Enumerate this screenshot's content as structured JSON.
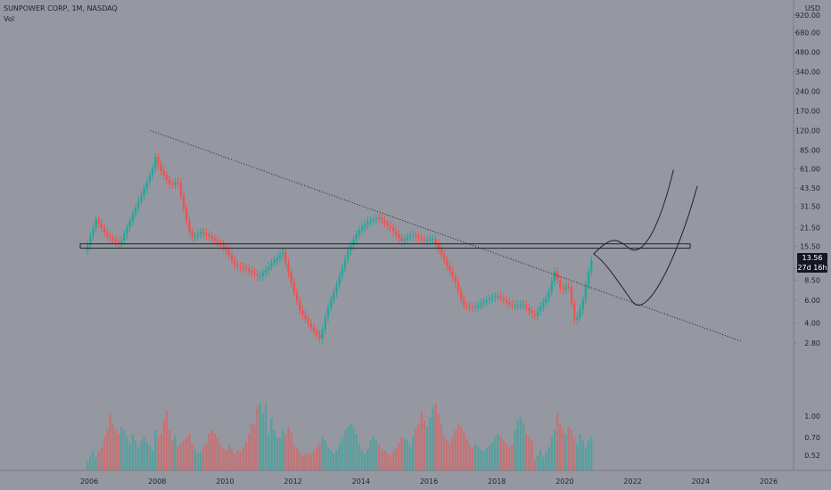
{
  "header": {
    "title": "SUNPOWER CORP, 1M, NASDAQ",
    "volume_label": "Vol"
  },
  "price_badge": {
    "value": "13.56",
    "countdown": "27d 16h"
  },
  "chart_data": {
    "type": "candlestick",
    "title": "SUNPOWER CORP, 1M, NASDAQ",
    "currency": "USD",
    "y_scale": "log",
    "y_ticks": [
      "920.00",
      "680.00",
      "480.00",
      "340.00",
      "240.00",
      "170.00",
      "120.00",
      "85.00",
      "61.00",
      "43.50",
      "31.50",
      "21.50",
      "15.50",
      "10.50",
      "8.50",
      "6.00",
      "4.00",
      "2.80"
    ],
    "x_ticks": [
      "2006",
      "2008",
      "2010",
      "2012",
      "2014",
      "2016",
      "2018",
      "2020",
      "2022",
      "2024",
      "2026"
    ],
    "volume_ticks": [
      "1.00",
      "0.70",
      "0.52"
    ],
    "colors": {
      "up": "#26a69a",
      "down": "#ef5350",
      "background": "#9598a1",
      "text": "#1e222d",
      "badge_bg": "#131722"
    },
    "price_path": [
      [
        2005.9,
        14.5
      ],
      [
        2006.2,
        25
      ],
      [
        2006.5,
        19
      ],
      [
        2006.9,
        16
      ],
      [
        2007.3,
        28
      ],
      [
        2007.6,
        42
      ],
      [
        2007.85,
        60
      ],
      [
        2007.95,
        75
      ],
      [
        2008.1,
        60
      ],
      [
        2008.4,
        45
      ],
      [
        2008.6,
        50
      ],
      [
        2008.85,
        25
      ],
      [
        2009.0,
        18
      ],
      [
        2009.3,
        20
      ],
      [
        2009.6,
        18
      ],
      [
        2010.0,
        15
      ],
      [
        2010.3,
        11
      ],
      [
        2010.6,
        10.5
      ],
      [
        2011.0,
        9
      ],
      [
        2011.3,
        11
      ],
      [
        2011.7,
        14
      ],
      [
        2011.9,
        9
      ],
      [
        2012.2,
        5
      ],
      [
        2012.5,
        3.8
      ],
      [
        2012.8,
        3
      ],
      [
        2013.0,
        5
      ],
      [
        2013.3,
        8
      ],
      [
        2013.6,
        14
      ],
      [
        2013.9,
        20
      ],
      [
        2014.2,
        24
      ],
      [
        2014.5,
        26
      ],
      [
        2014.9,
        21
      ],
      [
        2015.2,
        17
      ],
      [
        2015.5,
        19
      ],
      [
        2015.9,
        17
      ],
      [
        2016.1,
        18
      ],
      [
        2016.4,
        13
      ],
      [
        2016.8,
        8
      ],
      [
        2017.0,
        5.5
      ],
      [
        2017.3,
        5.2
      ],
      [
        2017.6,
        5.8
      ],
      [
        2018.0,
        6.5
      ],
      [
        2018.4,
        5.5
      ],
      [
        2018.8,
        5.5
      ],
      [
        2019.1,
        4.5
      ],
      [
        2019.5,
        6.5
      ],
      [
        2019.7,
        10
      ],
      [
        2019.9,
        7
      ],
      [
        2020.1,
        8
      ],
      [
        2020.3,
        4
      ],
      [
        2020.5,
        5.5
      ],
      [
        2020.7,
        10
      ],
      [
        2020.83,
        13.56
      ]
    ],
    "volume_heights": [
      0.15,
      0.22,
      0.3,
      0.2,
      0.28,
      0.35,
      0.5,
      0.6,
      0.85,
      0.7,
      0.6,
      0.55,
      0.65,
      0.6,
      0.5,
      0.4,
      0.55,
      0.45,
      0.35,
      0.45,
      0.5,
      0.42,
      0.38,
      0.3,
      0.6,
      0.5,
      0.55,
      0.75,
      0.9,
      0.6,
      0.45,
      0.52,
      0.35,
      0.4,
      0.45,
      0.5,
      0.55,
      0.4,
      0.32,
      0.26,
      0.28,
      0.35,
      0.4,
      0.55,
      0.6,
      0.55,
      0.48,
      0.38,
      0.34,
      0.3,
      0.38,
      0.32,
      0.25,
      0.3,
      0.28,
      0.35,
      0.42,
      0.55,
      0.7,
      0.68,
      0.95,
      1.0,
      0.85,
      1.0,
      0.55,
      0.78,
      0.6,
      0.5,
      0.48,
      0.62,
      0.55,
      0.65,
      0.56,
      0.38,
      0.33,
      0.28,
      0.22,
      0.24,
      0.26,
      0.25,
      0.3,
      0.35,
      0.4,
      0.5,
      0.45,
      0.35,
      0.3,
      0.25,
      0.3,
      0.4,
      0.5,
      0.6,
      0.65,
      0.7,
      0.65,
      0.55,
      0.4,
      0.3,
      0.25,
      0.32,
      0.45,
      0.5,
      0.45,
      0.38,
      0.32,
      0.3,
      0.26,
      0.24,
      0.28,
      0.33,
      0.42,
      0.5,
      0.48,
      0.44,
      0.36,
      0.5,
      0.62,
      0.7,
      0.9,
      0.75,
      0.66,
      0.8,
      0.95,
      1.0,
      0.85,
      0.7,
      0.5,
      0.45,
      0.4,
      0.5,
      0.6,
      0.7,
      0.66,
      0.58,
      0.48,
      0.38,
      0.35,
      0.4,
      0.36,
      0.3,
      0.28,
      0.33,
      0.38,
      0.42,
      0.5,
      0.55,
      0.5,
      0.45,
      0.4,
      0.35,
      0.38,
      0.6,
      0.75,
      0.8,
      0.7,
      0.55,
      0.5,
      0.45
    ],
    "annotations": {
      "trendline_from": [
        2007.8,
        120
      ],
      "trendline_to": [
        2025.2,
        2.9
      ],
      "support_band": [
        15.0,
        16.2
      ],
      "projection_low": [
        2022.0,
        5.8
      ],
      "projection_high": [
        2023.9,
        45
      ]
    }
  }
}
